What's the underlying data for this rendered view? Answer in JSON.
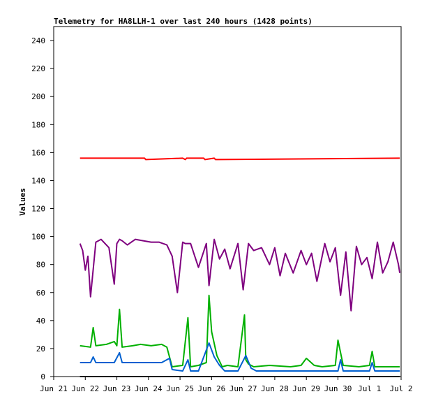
{
  "chart_data": {
    "type": "line",
    "title": "Telemetry for HA8LLH-1 over last 240 hours (1428 points)",
    "ylabel": "Values",
    "xlabel": "",
    "ylim": [
      0,
      250
    ],
    "yticks": [
      0,
      20,
      40,
      60,
      80,
      100,
      120,
      140,
      160,
      180,
      200,
      220,
      240
    ],
    "xlim": [
      "2021-06-21",
      "2021-07-02"
    ],
    "xticks": [
      {
        "date": "2021-06-21",
        "label": "Jun 21"
      },
      {
        "date": "2021-06-22",
        "label": "Jun 22"
      },
      {
        "date": "2021-06-23",
        "label": "Jun 23"
      },
      {
        "date": "2021-06-24",
        "label": "Jun 24"
      },
      {
        "date": "2021-06-25",
        "label": "Jun 25"
      },
      {
        "date": "2021-06-26",
        "label": "Jun 26"
      },
      {
        "date": "2021-06-27",
        "label": "Jun 27"
      },
      {
        "date": "2021-06-28",
        "label": "Jun 28"
      },
      {
        "date": "2021-06-29",
        "label": "Jun 29"
      },
      {
        "date": "2021-06-30",
        "label": "Jun 30"
      },
      {
        "date": "2021-07-01",
        "label": "Jul 1"
      },
      {
        "date": "2021-07-02",
        "label": "Jul 2"
      }
    ],
    "grid": false,
    "series": [
      {
        "color": "#ff0000",
        "x": [
          "2021-06-21T20:00",
          "2021-06-23T21:00",
          "2021-06-23T22:00",
          "2021-06-25T02:00",
          "2021-06-25T04:00",
          "2021-06-25T05:00",
          "2021-06-25T18:00",
          "2021-06-25T19:00",
          "2021-06-26T02:00",
          "2021-06-26T03:00",
          "2021-07-01T23:00"
        ],
        "values": [
          156,
          156,
          155,
          156,
          155,
          156,
          156,
          155,
          156,
          155,
          156
        ]
      },
      {
        "color": "#7f007f",
        "x": [
          "2021-06-21T20:00",
          "2021-06-21T22:00",
          "2021-06-22T00:00",
          "2021-06-22T02:00",
          "2021-06-22T04:00",
          "2021-06-22T08:00",
          "2021-06-22T12:00",
          "2021-06-22T18:00",
          "2021-06-22T22:00",
          "2021-06-23T00:00",
          "2021-06-23T02:00",
          "2021-06-23T04:00",
          "2021-06-23T08:00",
          "2021-06-23T14:00",
          "2021-06-23T20:00",
          "2021-06-24T02:00",
          "2021-06-24T08:00",
          "2021-06-24T14:00",
          "2021-06-24T18:00",
          "2021-06-24T22:00",
          "2021-06-25T02:00",
          "2021-06-25T04:00",
          "2021-06-25T08:00",
          "2021-06-25T14:00",
          "2021-06-25T20:00",
          "2021-06-25T22:00",
          "2021-06-26T02:00",
          "2021-06-26T06:00",
          "2021-06-26T10:00",
          "2021-06-26T14:00",
          "2021-06-26T20:00",
          "2021-06-27T00:00",
          "2021-06-27T04:00",
          "2021-06-27T08:00",
          "2021-06-27T14:00",
          "2021-06-27T20:00",
          "2021-06-28T00:00",
          "2021-06-28T04:00",
          "2021-06-28T08:00",
          "2021-06-28T14:00",
          "2021-06-28T20:00",
          "2021-06-29T00:00",
          "2021-06-29T04:00",
          "2021-06-29T08:00",
          "2021-06-29T14:00",
          "2021-06-29T18:00",
          "2021-06-29T22:00",
          "2021-06-30T02:00",
          "2021-06-30T06:00",
          "2021-06-30T10:00",
          "2021-06-30T14:00",
          "2021-06-30T18:00",
          "2021-06-30T22:00",
          "2021-07-01T02:00",
          "2021-07-01T06:00",
          "2021-07-01T10:00",
          "2021-07-01T14:00",
          "2021-07-01T18:00",
          "2021-07-01T22:00",
          "2021-07-01T23:00"
        ],
        "values": [
          95,
          90,
          76,
          86,
          57,
          96,
          98,
          92,
          66,
          95,
          98,
          97,
          94,
          98,
          97,
          96,
          96,
          94,
          86,
          60,
          96,
          95,
          95,
          78,
          95,
          65,
          98,
          84,
          91,
          77,
          95,
          62,
          95,
          90,
          92,
          80,
          92,
          72,
          88,
          74,
          90,
          80,
          88,
          68,
          95,
          82,
          92,
          58,
          89,
          47,
          93,
          80,
          85,
          70,
          96,
          74,
          82,
          96,
          80,
          74
        ]
      },
      {
        "color": "#00b000",
        "x": [
          "2021-06-21T20:00",
          "2021-06-22T04:00",
          "2021-06-22T06:00",
          "2021-06-22T08:00",
          "2021-06-22T16:00",
          "2021-06-22T22:00",
          "2021-06-23T00:00",
          "2021-06-23T02:00",
          "2021-06-23T04:00",
          "2021-06-23T12:00",
          "2021-06-23T18:00",
          "2021-06-24T02:00",
          "2021-06-24T10:00",
          "2021-06-24T14:00",
          "2021-06-24T18:00",
          "2021-06-25T02:00",
          "2021-06-25T06:00",
          "2021-06-25T08:00",
          "2021-06-25T14:00",
          "2021-06-25T20:00",
          "2021-06-25T22:00",
          "2021-06-26T00:00",
          "2021-06-26T04:00",
          "2021-06-26T08:00",
          "2021-06-26T12:00",
          "2021-06-26T20:00",
          "2021-06-27T01:00",
          "2021-06-27T02:00",
          "2021-06-27T04:00",
          "2021-06-27T08:00",
          "2021-06-27T20:00",
          "2021-06-28T12:00",
          "2021-06-28T20:00",
          "2021-06-29T00:00",
          "2021-06-29T06:00",
          "2021-06-29T12:00",
          "2021-06-29T22:00",
          "2021-06-30T00:00",
          "2021-06-30T04:00",
          "2021-06-30T16:00",
          "2021-07-01T00:00",
          "2021-07-01T02:00",
          "2021-07-01T04:00",
          "2021-07-01T23:00"
        ],
        "values": [
          22,
          21,
          35,
          22,
          23,
          25,
          22,
          48,
          21,
          22,
          23,
          22,
          23,
          21,
          7,
          8,
          42,
          7,
          8,
          10,
          58,
          32,
          15,
          7,
          8,
          7,
          44,
          12,
          9,
          7,
          8,
          7,
          8,
          13,
          8,
          7,
          8,
          26,
          8,
          7,
          8,
          18,
          7,
          7
        ]
      },
      {
        "color": "#0060d0",
        "x": [
          "2021-06-21T20:00",
          "2021-06-22T04:00",
          "2021-06-22T06:00",
          "2021-06-22T08:00",
          "2021-06-22T22:00",
          "2021-06-23T02:00",
          "2021-06-23T04:00",
          "2021-06-23T12:00",
          "2021-06-24T10:00",
          "2021-06-24T16:00",
          "2021-06-24T18:00",
          "2021-06-25T02:00",
          "2021-06-25T06:00",
          "2021-06-25T08:00",
          "2021-06-25T14:00",
          "2021-06-25T22:00",
          "2021-06-26T02:00",
          "2021-06-26T06:00",
          "2021-06-26T10:00",
          "2021-06-26T20:00",
          "2021-06-27T02:00",
          "2021-06-27T06:00",
          "2021-06-27T10:00",
          "2021-06-28T20:00",
          "2021-06-30T00:00",
          "2021-06-30T02:00",
          "2021-06-30T04:00",
          "2021-07-01T00:00",
          "2021-07-01T02:00",
          "2021-07-01T04:00",
          "2021-07-01T23:00"
        ],
        "values": [
          10,
          10,
          14,
          10,
          10,
          17,
          10,
          10,
          10,
          13,
          5,
          4,
          12,
          4,
          4,
          24,
          14,
          8,
          4,
          4,
          15,
          6,
          4,
          4,
          4,
          12,
          4,
          4,
          10,
          4,
          4
        ]
      },
      {
        "color": "#000000",
        "x": [
          "2021-06-21T20:00",
          "2021-07-01T23:00"
        ],
        "values": [
          0,
          0
        ]
      }
    ]
  }
}
